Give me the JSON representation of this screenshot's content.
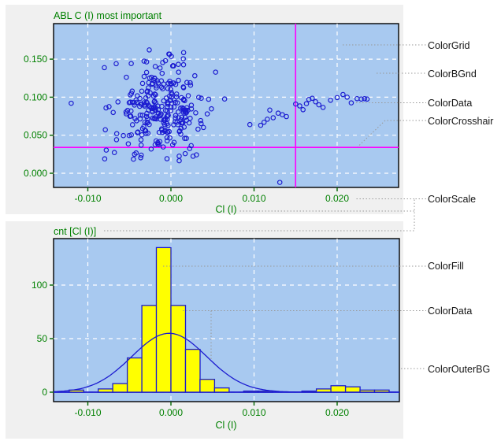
{
  "colors": {
    "outer_bg": "#F0F0F0",
    "plot_bg": "#A8C9F0",
    "grid": "#FFFFFF",
    "data": "#1B1BD0",
    "crosshair": "#FF00FF",
    "scale_text": "#008000",
    "tick_mark": "#006400",
    "fill": "#FFFF00",
    "border": "#000000",
    "leader": "#999999",
    "label_text": "#161616",
    "page_bg": "#FFFFFF"
  },
  "annotations": [
    {
      "label": "ColorGrid"
    },
    {
      "label": "ColorBGnd"
    },
    {
      "label": "ColorData"
    },
    {
      "label": "ColorCrosshair"
    },
    {
      "label": "ColorScale"
    },
    {
      "label": "ColorFill"
    },
    {
      "label": "ColorData"
    },
    {
      "label": "ColorOuterBG"
    }
  ],
  "chart_data": [
    {
      "type": "scatter",
      "title": "ABL C (I) most important",
      "xlabel": "Cl (I)",
      "ylabel": "",
      "xlim": [
        -0.0141,
        0.0273
      ],
      "ylim": [
        -0.019,
        0.197
      ],
      "grid": true,
      "xticks": [
        {
          "v": -0.01,
          "label": "-0.010"
        },
        {
          "v": 0.0,
          "label": "0.000"
        },
        {
          "v": 0.01,
          "label": "0.010"
        },
        {
          "v": 0.02,
          "label": "0.020"
        }
      ],
      "yticks": [
        {
          "v": 0.0,
          "label": "0.000"
        },
        {
          "v": 0.05,
          "label": "0.050"
        },
        {
          "v": 0.1,
          "label": "0.100"
        },
        {
          "v": 0.15,
          "label": "0.150"
        }
      ],
      "crosshair": {
        "x": 0.015,
        "y": 0.034
      },
      "cluster_model": [
        {
          "n": 255,
          "cx": -0.0012,
          "cy": 0.08,
          "sx": 0.0026,
          "sy": 0.03,
          "xmin": -0.0096,
          "xmax": 0.0058,
          "ymin": 0.016,
          "ymax": 0.194
        },
        {
          "n": 28,
          "cx": -0.001,
          "cy": 0.085,
          "sx": 0.004,
          "sy": 0.044,
          "xmin": -0.0102,
          "xmax": 0.0072,
          "ymin": 0.02,
          "ymax": 0.192
        }
      ],
      "seed": 1234,
      "points": [
        [
          -0.012,
          0.092
        ],
        [
          0.0095,
          0.064
        ],
        [
          0.0131,
          -0.012
        ],
        [
          0.0108,
          0.063
        ],
        [
          0.0112,
          0.067
        ],
        [
          0.0116,
          0.071
        ],
        [
          0.0119,
          0.083
        ],
        [
          0.0123,
          0.073
        ],
        [
          0.0129,
          0.079
        ],
        [
          0.0134,
          0.077
        ],
        [
          0.0139,
          0.0745
        ],
        [
          0.015,
          0.091
        ],
        [
          0.0155,
          0.0885
        ],
        [
          0.0159,
          0.0835
        ],
        [
          0.0163,
          0.0915
        ],
        [
          0.0166,
          0.097
        ],
        [
          0.017,
          0.0985
        ],
        [
          0.0174,
          0.094
        ],
        [
          0.0178,
          0.09
        ],
        [
          0.0183,
          0.0865
        ],
        [
          0.0192,
          0.096
        ],
        [
          0.02,
          0.0995
        ],
        [
          0.0207,
          0.1035
        ],
        [
          0.0212,
          0.1
        ],
        [
          0.0217,
          0.0925
        ],
        [
          0.0224,
          0.098
        ],
        [
          0.0229,
          0.0975
        ],
        [
          0.0233,
          0.098
        ],
        [
          0.0236,
          0.0975
        ]
      ]
    },
    {
      "type": "histogram",
      "title": "cnt [Cl (I)]",
      "xlabel": "Cl (I)",
      "ylabel": "",
      "xlim": [
        -0.0141,
        0.0273
      ],
      "ylim": [
        -9,
        143
      ],
      "grid": true,
      "xticks": [
        {
          "v": -0.01,
          "label": "-0.010"
        },
        {
          "v": 0.0,
          "label": "0.000"
        },
        {
          "v": 0.01,
          "label": "0.010"
        },
        {
          "v": 0.02,
          "label": "0.020"
        }
      ],
      "yticks": [
        {
          "v": 0,
          "label": "0"
        },
        {
          "v": 50,
          "label": "50"
        },
        {
          "v": 100,
          "label": "100"
        }
      ],
      "bins": {
        "start": -0.01225,
        "width": 0.00175,
        "counts": [
          2,
          0,
          3,
          8,
          32,
          81,
          135,
          81,
          40,
          12,
          4,
          0,
          1,
          1,
          0,
          0,
          1,
          3,
          6,
          5,
          2,
          2
        ]
      },
      "curve": {
        "type": "gaussian",
        "amplitude": 55,
        "mean": -0.0002,
        "sigma": 0.0045
      }
    }
  ]
}
